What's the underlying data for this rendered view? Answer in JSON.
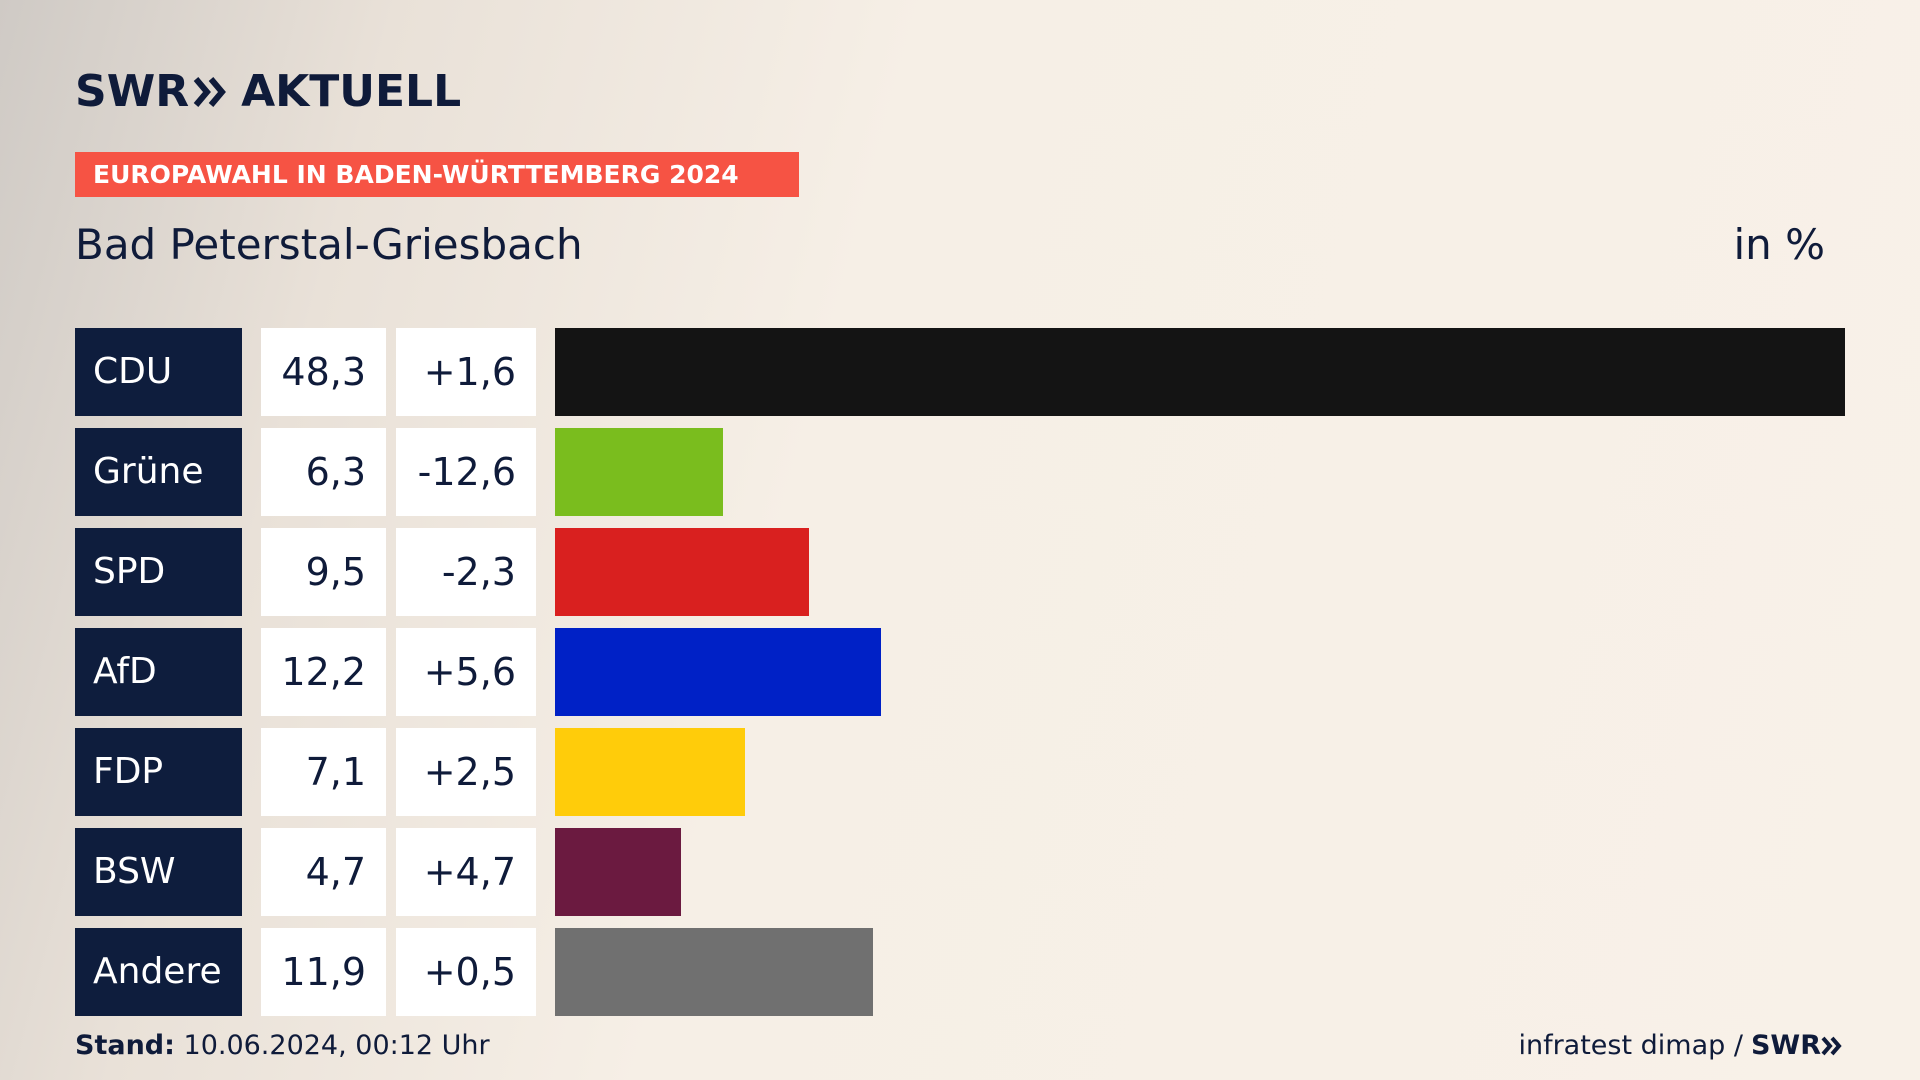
{
  "header": {
    "logo_left": "SWR",
    "logo_right": "AKTUELL",
    "banner": "EUROPAWAHL IN BADEN-WÜRTTEMBERG 2024",
    "subtitle": "Bad Peterstal-Griesbach",
    "unit": "in %"
  },
  "footer": {
    "stand_label": "Stand:",
    "stand_value": "10.06.2024, 00:12 Uhr",
    "source": "infratest dimap /",
    "source_logo": "SWR"
  },
  "chart_data": {
    "type": "bar",
    "title": "Bad Peterstal-Griesbach",
    "unit": "in %",
    "categories": [
      "CDU",
      "Grüne",
      "SPD",
      "AfD",
      "FDP",
      "BSW",
      "Andere"
    ],
    "values": [
      48.3,
      6.3,
      9.5,
      12.2,
      7.1,
      4.7,
      11.9
    ],
    "value_labels": [
      "48,3",
      "6,3",
      "9,5",
      "12,2",
      "7,1",
      "4,7",
      "11,9"
    ],
    "changes": [
      1.6,
      -12.6,
      -2.3,
      5.6,
      2.5,
      4.7,
      0.5
    ],
    "change_labels": [
      "+1,6",
      "-12,6",
      "-2,3",
      "+5,6",
      "+2,5",
      "+4,7",
      "+0,5"
    ],
    "colors": [
      "#141414",
      "#7abd1e",
      "#d9201f",
      "#0021c6",
      "#ffcc0a",
      "#6b1a40",
      "#707070"
    ],
    "xlim": [
      0,
      48.3
    ]
  }
}
